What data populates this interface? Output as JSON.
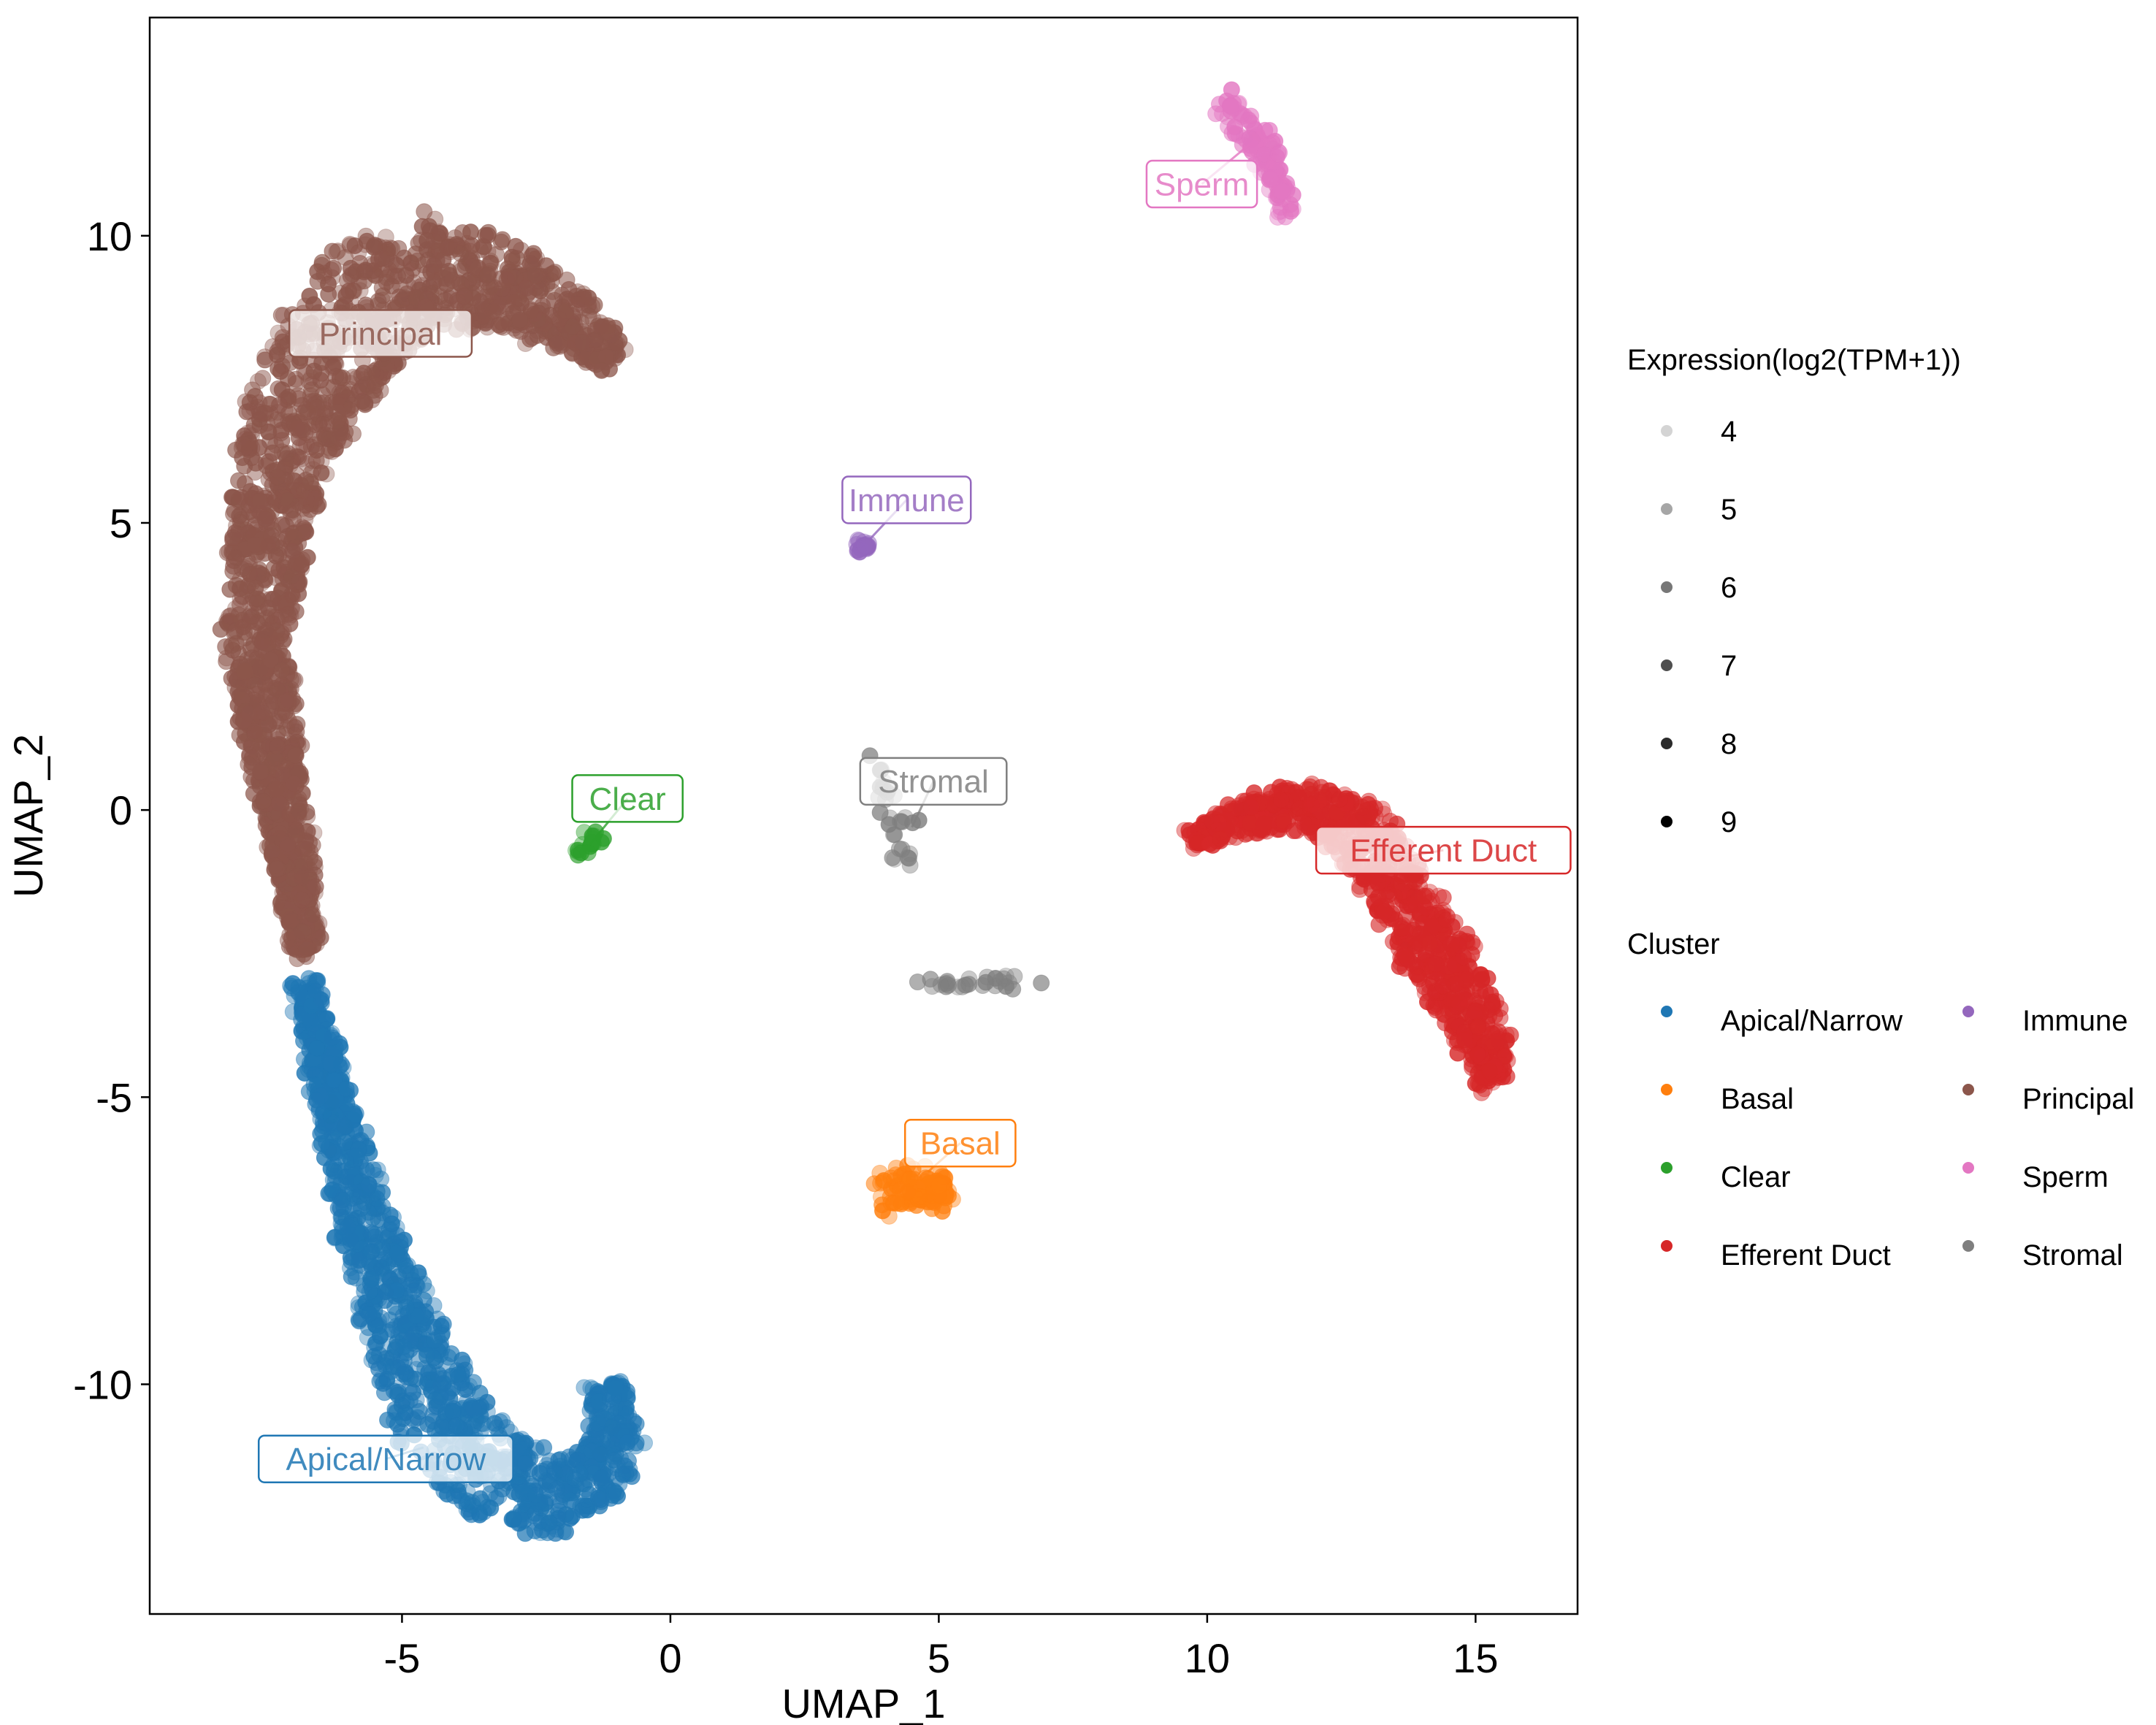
{
  "chart_data": {
    "type": "scatter",
    "xlabel": "UMAP_1",
    "ylabel": "UMAP_2",
    "xlim": [
      -9.7,
      16.9
    ],
    "ylim": [
      -14.0,
      13.8
    ],
    "x_ticks": [
      -5,
      0,
      5,
      10,
      15
    ],
    "x_tick_labels": [
      "-5",
      "0",
      "5",
      "10",
      "15"
    ],
    "y_ticks": [
      -10,
      -5,
      0,
      5,
      10
    ],
    "y_tick_labels": [
      "-10",
      "-5",
      "0",
      "5",
      "10"
    ],
    "grid": false,
    "legend_position": "right",
    "size_legend": {
      "title": "Expression(log2(TPM+1))",
      "values": [
        4,
        5,
        6,
        7,
        8,
        9
      ],
      "labels": [
        "4",
        "5",
        "6",
        "7",
        "8",
        "9"
      ],
      "colors": [
        "#d4d4d4",
        "#a6a6a6",
        "#777777",
        "#4f4f4f",
        "#2b2b2b",
        "#000000"
      ]
    },
    "cluster_legend": {
      "title": "Cluster",
      "entries": [
        {
          "name": "Apical/Narrow",
          "color": "#1f77b4"
        },
        {
          "name": "Basal",
          "color": "#ff7f0e"
        },
        {
          "name": "Clear",
          "color": "#2ca02c"
        },
        {
          "name": "Efferent Duct",
          "color": "#d62728"
        },
        {
          "name": "Immune",
          "color": "#9467bd"
        },
        {
          "name": "Principal",
          "color": "#8c564b"
        },
        {
          "name": "Sperm",
          "color": "#e377c2"
        },
        {
          "name": "Stromal",
          "color": "#7f7f7f"
        }
      ]
    },
    "series": [
      {
        "name": "Principal",
        "color": "#8c564b",
        "shape": "arc",
        "path": [
          [
            -6.8,
            -2.5
          ],
          [
            -7.0,
            -1.0
          ],
          [
            -7.4,
            1.0
          ],
          [
            -7.7,
            3.0
          ],
          [
            -7.4,
            5.5
          ],
          [
            -6.9,
            7.0
          ],
          [
            -6.0,
            8.5
          ],
          [
            -4.8,
            9.4
          ],
          [
            -3.2,
            9.2
          ],
          [
            -1.8,
            8.5
          ],
          [
            -1.0,
            7.8
          ]
        ],
        "widths": [
          0.25,
          0.35,
          0.5,
          0.6,
          0.8,
          1.0,
          1.2,
          1.0,
          0.8,
          0.5,
          0.25
        ],
        "count": 1900,
        "label": "Principal",
        "label_at": [
          -5.4,
          8.3
        ],
        "label_anchor": [
          -5.4,
          8.3
        ]
      },
      {
        "name": "Apical/Narrow",
        "color": "#1f77b4",
        "shape": "arc",
        "path": [
          [
            -6.8,
            -3.0
          ],
          [
            -6.3,
            -5.0
          ],
          [
            -5.8,
            -7.0
          ],
          [
            -5.0,
            -9.0
          ],
          [
            -4.2,
            -10.8
          ],
          [
            -3.0,
            -11.8
          ],
          [
            -1.8,
            -12.0
          ],
          [
            -1.0,
            -11.2
          ],
          [
            -1.2,
            -10.0
          ]
        ],
        "widths": [
          0.2,
          0.35,
          0.5,
          0.7,
          0.9,
          0.8,
          0.6,
          0.5,
          0.3
        ],
        "count": 1300,
        "label": "Apical/Narrow",
        "label_at": [
          -5.3,
          -11.3
        ],
        "label_anchor": [
          -4.6,
          -11.1
        ]
      },
      {
        "name": "Efferent Duct",
        "color": "#d62728",
        "shape": "arc",
        "path": [
          [
            9.7,
            -0.5
          ],
          [
            10.8,
            -0.1
          ],
          [
            12.0,
            0.1
          ],
          [
            13.0,
            -0.5
          ],
          [
            13.8,
            -1.8
          ],
          [
            14.5,
            -2.8
          ],
          [
            15.2,
            -4.0
          ],
          [
            15.3,
            -4.8
          ]
        ],
        "widths": [
          0.15,
          0.3,
          0.4,
          0.55,
          0.6,
          0.6,
          0.45,
          0.2
        ],
        "count": 900,
        "label": "Efferent Duct",
        "label_at": [
          14.4,
          -0.7
        ],
        "label_anchor": [
          13.2,
          -0.9
        ]
      },
      {
        "name": "Sperm",
        "color": "#e377c2",
        "shape": "arc",
        "path": [
          [
            10.2,
            12.3
          ],
          [
            10.6,
            12.0
          ],
          [
            11.0,
            11.6
          ],
          [
            11.3,
            11.0
          ],
          [
            11.5,
            10.4
          ]
        ],
        "widths": [
          0.25,
          0.3,
          0.25,
          0.15,
          0.12
        ],
        "count": 110,
        "label": "Sperm",
        "label_at": [
          9.9,
          10.9
        ],
        "label_anchor": [
          10.8,
          11.6
        ]
      },
      {
        "name": "Basal",
        "color": "#ff7f0e",
        "shape": "blob",
        "center": [
          4.6,
          -6.6
        ],
        "radius": [
          0.6,
          0.3
        ],
        "count": 110,
        "label": "Basal",
        "label_at": [
          5.4,
          -5.8
        ],
        "label_anchor": [
          4.8,
          -6.3
        ]
      },
      {
        "name": "Immune",
        "color": "#9467bd",
        "shape": "blob",
        "center": [
          3.6,
          4.6
        ],
        "radius": [
          0.12,
          0.1
        ],
        "count": 25,
        "label": "Immune",
        "label_at": [
          4.4,
          5.4
        ],
        "label_anchor": [
          3.7,
          4.7
        ]
      },
      {
        "name": "Clear",
        "color": "#2ca02c",
        "shape": "line",
        "path": [
          [
            -1.8,
            -0.8
          ],
          [
            -1.3,
            -0.4
          ]
        ],
        "count": 20,
        "label": "Clear",
        "label_at": [
          -0.8,
          0.2
        ],
        "label_anchor": [
          -1.5,
          -0.6
        ]
      },
      {
        "name": "Stromal",
        "color": "#7f7f7f",
        "shape": "groups",
        "groups": [
          {
            "center": [
              4.0,
              0.5
            ],
            "radius": [
              0.2,
              0.4
            ],
            "count": 12
          },
          {
            "center": [
              4.3,
              -0.3
            ],
            "radius": [
              0.3,
              0.2
            ],
            "count": 10
          },
          {
            "center": [
              4.3,
              -0.8
            ],
            "radius": [
              0.2,
              0.15
            ],
            "count": 8
          },
          {
            "center": [
              5.6,
              -3.0
            ],
            "radius": [
              1.0,
              0.1
            ],
            "count": 28
          }
        ],
        "label": "Stromal",
        "label_at": [
          4.9,
          0.5
        ],
        "label_anchor": [
          4.5,
          -0.3
        ]
      }
    ]
  }
}
